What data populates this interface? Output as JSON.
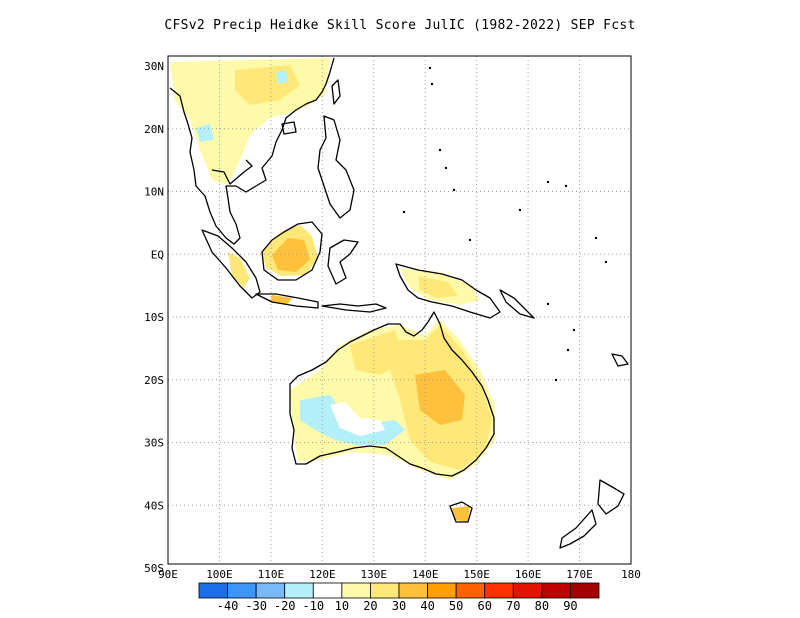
{
  "title": "CFSv2 Precip Heidke Skill Score JulIC (1982-2022) SEP Fcst",
  "map": {
    "lat_labels": [
      "30N",
      "20N",
      "10N",
      "EQ",
      "10S",
      "20S",
      "30S",
      "40S",
      "50S"
    ],
    "lon_labels": [
      "90E",
      "100E",
      "110E",
      "120E",
      "130E",
      "140E",
      "150E",
      "160E",
      "170E",
      "180"
    ],
    "grid": "dotted"
  },
  "colorbar": {
    "colors": [
      "#1e6eeb",
      "#3c96f5",
      "#78b9fa",
      "#b4f0fa",
      "#ffffff",
      "#fffaaa",
      "#ffe878",
      "#ffc03c",
      "#ffa000",
      "#ff6000",
      "#ff3200",
      "#e11400",
      "#c00000",
      "#a50000"
    ],
    "labels": [
      "-40",
      "-30",
      "-20",
      "-10",
      "10",
      "20",
      "30",
      "40",
      "50",
      "60",
      "70",
      "80",
      "90"
    ]
  },
  "regions": [
    {
      "name": "indochina",
      "color": "#fffaaa"
    },
    {
      "name": "borneo-center",
      "color": "#ffc03c"
    },
    {
      "name": "australia-east",
      "color": "#ffe878"
    },
    {
      "name": "australia-west-cool",
      "color": "#b4f0fa"
    }
  ]
}
